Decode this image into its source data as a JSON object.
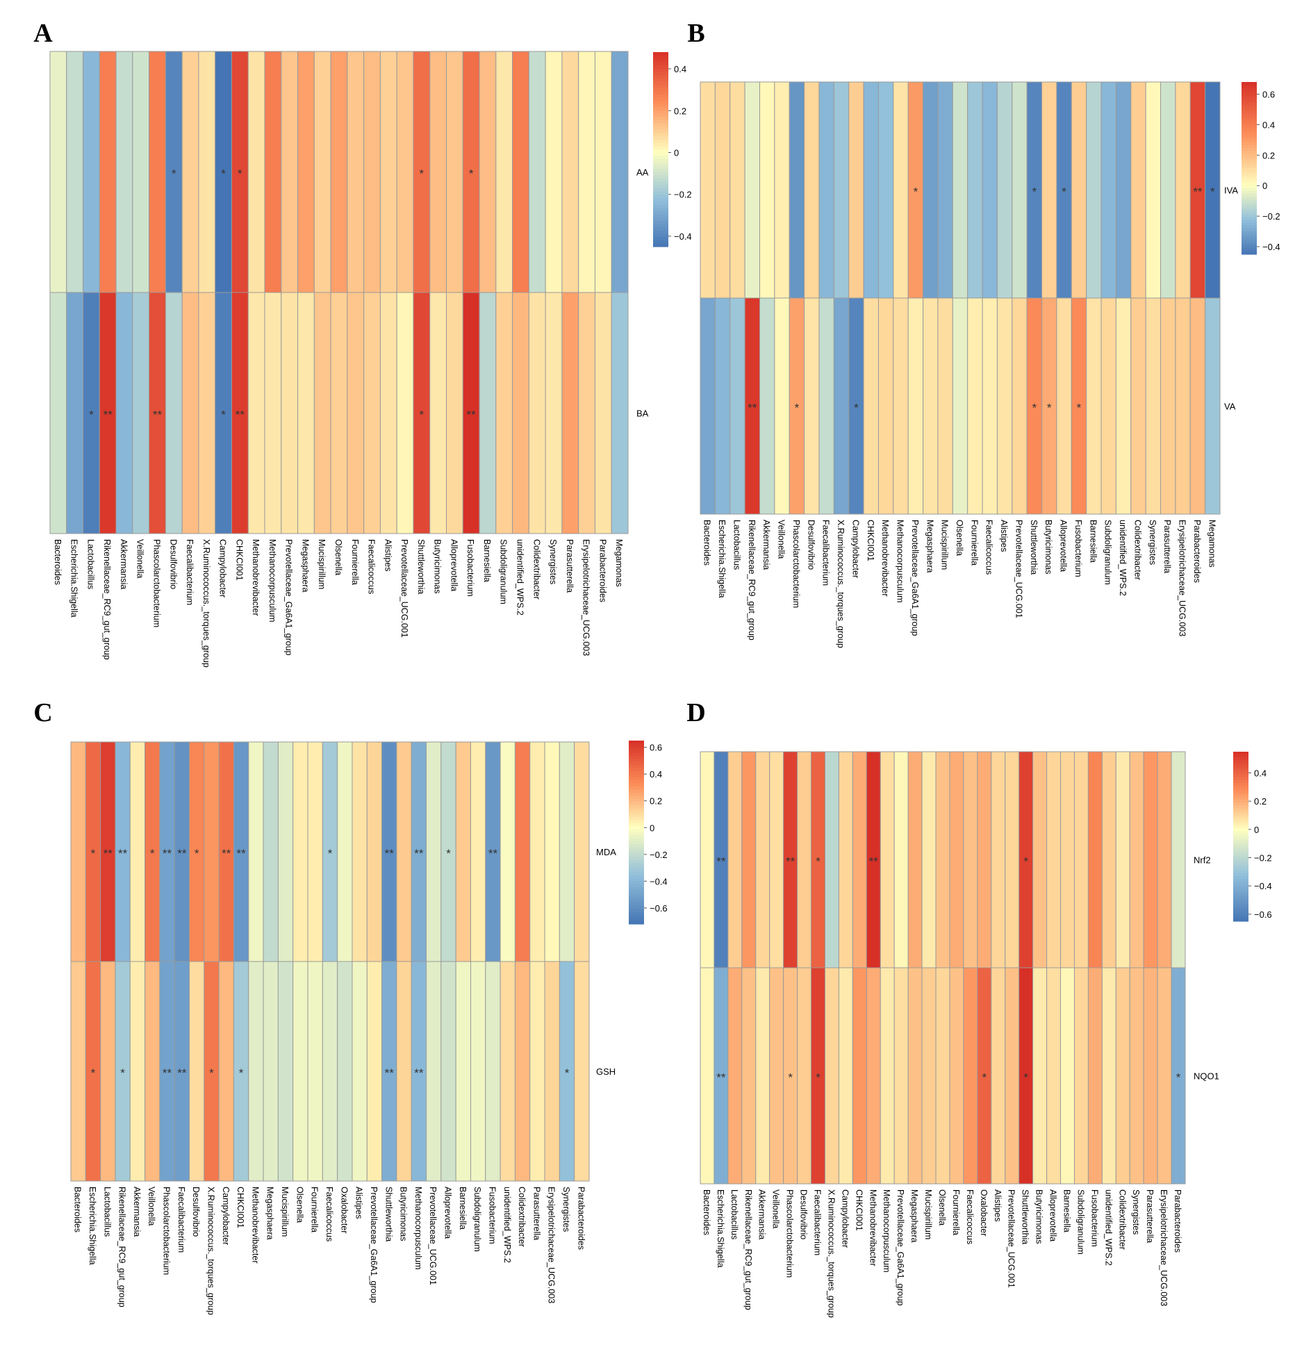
{
  "figure": {
    "panels": [
      {
        "letter": "A"
      },
      {
        "letter": "B"
      },
      {
        "letter": "C"
      },
      {
        "letter": "D"
      }
    ]
  },
  "colors": {
    "neg_strong": "#4575b4",
    "neg_mid": "#91bfdb",
    "neutral": "#ffffbf",
    "pos_mid": "#fc8d59",
    "pos_strong": "#d73027",
    "grid": "#9a9a9a"
  },
  "chart_data": [
    {
      "panel": "A",
      "type": "heatmap",
      "rows": [
        "AA",
        "BA"
      ],
      "columns": [
        "Bacteroides",
        "Escherichia.Shigella",
        "Lactobacillus",
        "Rikenellaceae_RC9_gut_group",
        "Akkermansia",
        "Veillonella",
        "Phascolarctobacterium",
        "Desulfovibrio",
        "Faecalibacterium",
        "X.Ruminococcus._torques_group",
        "Campylobacter",
        "CHKCI001",
        "Methanobrevibacter",
        "Methanocorpusculum",
        "Prevotellaceae_Ga6A1_group",
        "Megasphaera",
        "Mucispirillum",
        "Olsenella",
        "Fournierella",
        "Faecalicoccus",
        "Alistipes",
        "Prevotellaceae_UCG.001",
        "Shuttleworthia",
        "Butyricimonas",
        "Alloprevotella",
        "Fusobacterium",
        "Barnesiella",
        "Subdoligranulum",
        "unidentified_WPS.2",
        "Colidextribacter",
        "Synergistes",
        "Parasutterella",
        "Erysipelotrichaceae_UCG.003",
        "Parabacteroides",
        "Megamonas"
      ],
      "values": [
        [
          -0.05,
          -0.12,
          -0.25,
          0.28,
          -0.12,
          -0.1,
          0.28,
          -0.4,
          0.1,
          0.06,
          -0.45,
          0.42,
          0.06,
          0.28,
          0.12,
          0.2,
          0.1,
          0.2,
          0.12,
          0.14,
          0.1,
          0.12,
          0.32,
          0.14,
          0.12,
          0.32,
          0.14,
          0.05,
          0.28,
          -0.12,
          0.02,
          0.08,
          0.02,
          0.02,
          -0.3
        ],
        [
          -0.1,
          -0.3,
          -0.42,
          0.46,
          -0.25,
          -0.18,
          0.4,
          -0.15,
          0.14,
          0.1,
          -0.42,
          0.45,
          0.05,
          0.05,
          0.06,
          0.05,
          0.12,
          0.1,
          0.12,
          0.1,
          0.06,
          0.02,
          0.42,
          0.05,
          0.08,
          0.48,
          -0.14,
          0.1,
          0.15,
          0.06,
          0.05,
          0.2,
          0.1,
          0.06,
          -0.2
        ]
      ],
      "stars": [
        [
          "",
          "",
          "",
          "",
          "",
          "",
          "",
          "*",
          "",
          "",
          "*",
          "*",
          "",
          "",
          "",
          "",
          "",
          "",
          "",
          "",
          "",
          "",
          "*",
          "",
          "",
          "*",
          "",
          "",
          "",
          "",
          "",
          "",
          "",
          "",
          ""
        ],
        [
          "",
          "",
          "*",
          "**",
          "",
          "",
          "**",
          "",
          "",
          "",
          "*",
          "**",
          "",
          "",
          "",
          "",
          "",
          "",
          "",
          "",
          "",
          "",
          "*",
          "",
          "",
          "**",
          "",
          "",
          "",
          "",
          "",
          "",
          "",
          "",
          ""
        ]
      ],
      "colorbar": {
        "min": -0.45,
        "max": 0.48,
        "ticks": [
          0.4,
          0.2,
          0,
          -0.2,
          -0.4
        ],
        "tick_labels": [
          "0.4",
          "0.2",
          "0",
          "−0.2",
          "−0.4"
        ]
      }
    },
    {
      "panel": "B",
      "type": "heatmap",
      "rows": [
        "IVA",
        "VA"
      ],
      "columns": [
        "Bacteroides",
        "Escherichia.Shigella",
        "Lactobacillus",
        "Rikenellaceae_RC9_gut_group",
        "Akkermansia",
        "Veillonella",
        "Phascolarctobacterium",
        "Desulfovibrio",
        "Faecalibacterium",
        "X.Ruminococcus._torques_group",
        "Campylobacter",
        "CHKCI001",
        "Methanobrevibacter",
        "Methanocorpusculum",
        "Prevotellaceae_Ga6A1_group",
        "Megasphaera",
        "Mucispirillum",
        "Olsenella",
        "Fournierella",
        "Faecalicoccus",
        "Alistipes",
        "Prevotellaceae_UCG.001",
        "Shuttleworthia",
        "Butyricimonas",
        "Alloprevotella",
        "Fusobacterium",
        "Barnesiella",
        "Subdoligranulum",
        "unidentified_WPS.2",
        "Colidextribacter",
        "Synergistes",
        "Parasutterella",
        "Erysipelotrichaceae_UCG.003",
        "Parabacteroides",
        "Megamonas"
      ],
      "values": [
        [
          0.1,
          0.12,
          0.1,
          -0.05,
          0.02,
          0.05,
          -0.35,
          0.12,
          -0.25,
          -0.2,
          0.15,
          -0.25,
          -0.22,
          0.08,
          0.3,
          -0.32,
          -0.28,
          -0.1,
          -0.2,
          -0.25,
          -0.15,
          -0.1,
          -0.4,
          0.14,
          -0.4,
          0.15,
          -0.15,
          -0.25,
          -0.3,
          0.15,
          0.02,
          -0.1,
          0.12,
          0.6,
          -0.45
        ],
        [
          -0.3,
          -0.25,
          -0.2,
          0.65,
          -0.12,
          0.02,
          0.28,
          0.08,
          -0.12,
          -0.3,
          -0.4,
          0.1,
          0.12,
          0.1,
          0.05,
          0.08,
          0.1,
          -0.05,
          0.05,
          0.05,
          0.08,
          0.12,
          0.35,
          0.25,
          0.1,
          0.35,
          0.08,
          0.12,
          0.05,
          0.15,
          0.1,
          0.15,
          0.15,
          0.2,
          -0.2
        ]
      ],
      "stars": [
        [
          "",
          "",
          "",
          "",
          "",
          "",
          "",
          "",
          "",
          "",
          "",
          "",
          "",
          "",
          "*",
          "",
          "",
          "",
          "",
          "",
          "",
          "",
          "*",
          "",
          "*",
          "",
          "",
          "",
          "",
          "",
          "",
          "",
          "",
          "**",
          "*"
        ],
        [
          "",
          "",
          "",
          "**",
          "",
          "",
          "*",
          "",
          "",
          "",
          "*",
          "",
          "",
          "",
          "",
          "",
          "",
          "",
          "",
          "",
          "",
          "",
          "*",
          "*",
          "",
          "*",
          "",
          "",
          "",
          "",
          "",
          "",
          "",
          "",
          ""
        ]
      ],
      "colorbar": {
        "min": -0.45,
        "max": 0.68,
        "ticks": [
          0.6,
          0.4,
          0.2,
          0,
          -0.2,
          -0.4
        ],
        "tick_labels": [
          "0.6",
          "0.4",
          "0.2",
          "0",
          "−0.2",
          "−0.4"
        ]
      }
    },
    {
      "panel": "C",
      "type": "heatmap",
      "rows": [
        "MDA",
        "GSH"
      ],
      "columns": [
        "Bacteroides",
        "Escherichia.Shigella",
        "Lactobacillus",
        "Rikenellaceae_RC9_gut_group",
        "Akkermansia",
        "Veillonella",
        "Phascolarctobacterium",
        "Faecalibacterium",
        "Desulfovibrio",
        "X.Ruminococcus._torques_group",
        "Campylobacter",
        "CHKCI001",
        "Methanobrevibacter",
        "Megasphaera",
        "Mucispirillum",
        "Olsenella",
        "Fournierella",
        "Faecalicoccus",
        "Oxalobacter",
        "Alistipes",
        "Prevotellaceae_Ga6A1_group",
        "Shuttleworthia",
        "Butyricimonas",
        "Methanocorpusculum",
        "Prevotellaceae_UCG.001",
        "Alloprevotella",
        "Barnesiella",
        "Subdoligranulum",
        "Fusobacterium",
        "unidentified_WPS.2",
        "Colidextribacter",
        "Parasutterella",
        "Erysipelotrichaceae_UCG.003",
        "Synergistes",
        "Parabacteroides"
      ],
      "values": [
        [
          0.2,
          0.45,
          0.6,
          -0.4,
          0.05,
          0.4,
          -0.5,
          -0.58,
          0.35,
          0.3,
          0.42,
          -0.55,
          -0.05,
          -0.2,
          -0.1,
          0.05,
          0.05,
          -0.3,
          -0.05,
          0.08,
          0.12,
          -0.6,
          0.15,
          -0.45,
          -0.1,
          -0.2,
          0.15,
          0.05,
          -0.55,
          -0.02,
          0.38,
          0.05,
          0.02,
          -0.1,
          0.1
        ],
        [
          0.15,
          0.42,
          0.2,
          -0.3,
          0.05,
          0.2,
          -0.5,
          -0.52,
          0.1,
          0.4,
          0.2,
          -0.3,
          -0.1,
          -0.1,
          -0.15,
          -0.05,
          -0.05,
          -0.1,
          -0.15,
          -0.05,
          0.05,
          -0.45,
          0.12,
          -0.4,
          -0.1,
          -0.15,
          -0.05,
          -0.05,
          -0.1,
          0.1,
          0.2,
          0.05,
          0.12,
          -0.35,
          0.1
        ]
      ],
      "stars": [
        [
          "",
          "*",
          "**",
          "**",
          "",
          "*",
          "**",
          "**",
          "*",
          "",
          "**",
          "**",
          "",
          "",
          "",
          "",
          "",
          "*",
          "",
          "",
          "",
          "**",
          "",
          "**",
          "",
          "*",
          "",
          "",
          "**",
          "",
          "",
          "",
          "",
          "",
          ""
        ],
        [
          "",
          "*",
          "",
          "*",
          "",
          "",
          "**",
          "**",
          "",
          "*",
          "",
          "*",
          "",
          "",
          "",
          "",
          "",
          "",
          "",
          "",
          "",
          "**",
          "",
          "**",
          "",
          "",
          "",
          "",
          "",
          "",
          "",
          "",
          "",
          "*",
          ""
        ]
      ],
      "colorbar": {
        "min": -0.72,
        "max": 0.65,
        "ticks": [
          0.6,
          0.4,
          0.2,
          0,
          -0.2,
          -0.4,
          -0.6
        ],
        "tick_labels": [
          "0.6",
          "0.4",
          "0.2",
          "0",
          "−0.2",
          "−0.4",
          "−0.6"
        ]
      }
    },
    {
      "panel": "D",
      "type": "heatmap",
      "rows": [
        "Nrf2",
        "NQO1"
      ],
      "columns": [
        "Bacteroides",
        "Escherichia.Shigella",
        "Lactobacillus",
        "Rikenellaceae_RC9_gut_group",
        "Akkermansia",
        "Veillonella",
        "Phascolarctobacterium",
        "Desulfovibrio",
        "Faecalibacterium",
        "X.Ruminococcus._torques_group",
        "Campylobacter",
        "CHKCI001",
        "Methanobrevibacter",
        "Methanocorpusculum",
        "Prevotellaceae_Ga6A1_group",
        "Megasphaera",
        "Mucispirillum",
        "Olsenella",
        "Fournierella",
        "Faecalicoccus",
        "Oxalobacter",
        "Alistipes",
        "Prevotellaceae_UCG.001",
        "Shuttleworthia",
        "Butyricimonas",
        "Alloprevotella",
        "Barnesiella",
        "Subdoligranulum",
        "Fusobacterium",
        "unidentified_WPS.2",
        "Colidextribacter",
        "Synergistes",
        "Parasutterella",
        "Erysipelotrichaceae_UCG.003",
        "Parabacteroides"
      ],
      "values": [
        [
          0.02,
          -0.6,
          0.12,
          0.25,
          0.1,
          0.08,
          0.5,
          0.12,
          0.4,
          -0.2,
          0.1,
          0.2,
          0.55,
          0.08,
          0.02,
          0.2,
          0.05,
          0.15,
          0.2,
          0.15,
          0.2,
          0.1,
          0.1,
          0.5,
          0.15,
          0.1,
          0.1,
          0.1,
          0.3,
          0.12,
          0.05,
          0.15,
          0.25,
          0.2,
          -0.1
        ],
        [
          0.02,
          -0.4,
          0.2,
          0.15,
          0.05,
          0.15,
          0.15,
          0.12,
          0.5,
          0.1,
          0.05,
          0.25,
          0.2,
          0.05,
          0.08,
          0.15,
          0.12,
          0.1,
          0.15,
          0.25,
          0.4,
          0.1,
          0.15,
          0.55,
          0.05,
          0.08,
          0.02,
          0.1,
          0.2,
          0.05,
          0.12,
          0.15,
          0.18,
          0.15,
          -0.4
        ]
      ],
      "stars": [
        [
          "",
          "**",
          "",
          "",
          "",
          "",
          "**",
          "",
          "*",
          "",
          "",
          "",
          "**",
          "",
          "",
          "",
          "",
          "",
          "",
          "",
          "",
          "",
          "",
          "*",
          "",
          "",
          "",
          "",
          "",
          "",
          "",
          "",
          "",
          "",
          ""
        ],
        [
          "",
          "**",
          "",
          "",
          "",
          "",
          "*",
          "",
          "*",
          "",
          "",
          "",
          "",
          "",
          "",
          "",
          "",
          "",
          "",
          "",
          "*",
          "",
          "",
          "*",
          "",
          "",
          "",
          "",
          "",
          "",
          "",
          "",
          "",
          "",
          "*"
        ]
      ],
      "colorbar": {
        "min": -0.65,
        "max": 0.55,
        "ticks": [
          0.4,
          0.2,
          0,
          -0.2,
          -0.4,
          -0.6
        ],
        "tick_labels": [
          "0.4",
          "0.2",
          "0",
          "−0.2",
          "−0.4",
          "−0.6"
        ]
      }
    }
  ]
}
